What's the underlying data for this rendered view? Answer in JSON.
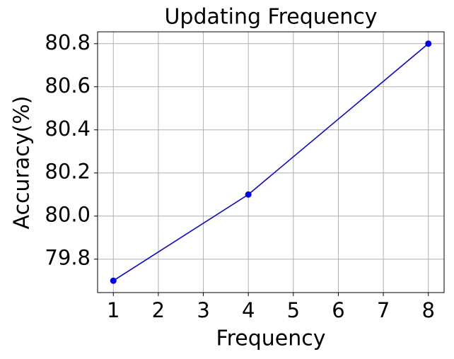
{
  "chart_data": {
    "type": "line",
    "title": "Updating Frequency",
    "x_label": "Frequency",
    "y_label": "Accuracy(%)",
    "x": [
      1,
      4,
      8
    ],
    "series": [
      {
        "name": "Accuracy",
        "color": "#0000ff",
        "values": [
          79.7,
          80.1,
          80.8
        ]
      }
    ],
    "xlim": [
      0.65,
      8.35
    ],
    "xticks": [
      1,
      2,
      3,
      4,
      5,
      6,
      7,
      8
    ],
    "ylim": [
      79.645,
      80.855
    ],
    "yticks": [
      79.8,
      {
        "value": 80.0,
        "label": "80.0"
      },
      80.2,
      80.4,
      80.6,
      80.8
    ],
    "grid": true
  }
}
